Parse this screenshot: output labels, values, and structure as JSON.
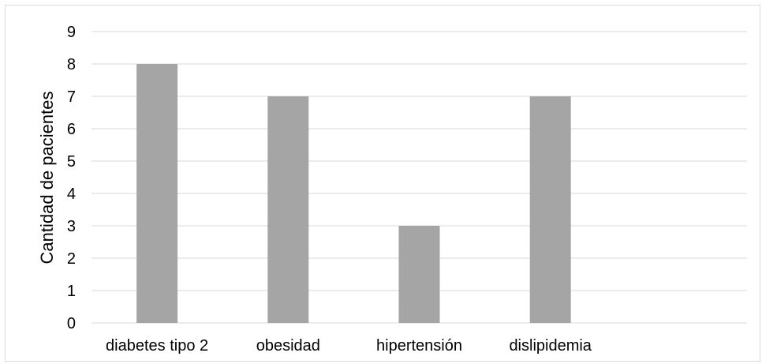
{
  "chart_data": {
    "type": "bar",
    "categories": [
      "diabetes tipo 2",
      "obesidad",
      "hipertensión",
      "dislipidemia",
      ""
    ],
    "values": [
      8,
      7,
      3,
      7,
      null
    ],
    "title": "",
    "xlabel": "",
    "ylabel": "Cantidad  de pacientes",
    "ylim": [
      0,
      9
    ],
    "yticks": [
      0,
      1,
      2,
      3,
      4,
      5,
      6,
      7,
      8,
      9
    ],
    "grid": true,
    "legend": "none",
    "colors": {
      "bar": "#a5a5a5",
      "grid": "#d9d9d9",
      "axis": "#d9d9d9",
      "text": "#000000"
    }
  }
}
